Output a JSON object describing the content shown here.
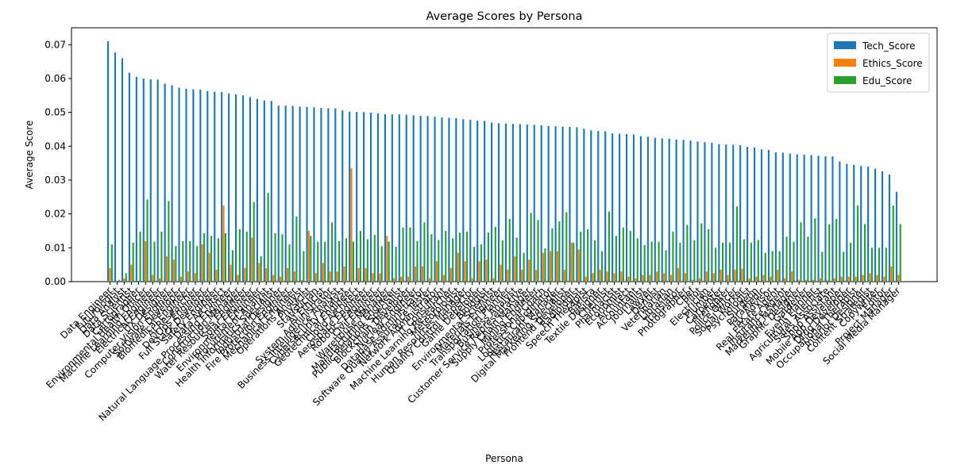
{
  "chart_data": {
    "type": "bar",
    "title": "Average Scores by Persona",
    "xlabel": "Persona",
    "ylabel": "Average Score",
    "categories": [
      "Data Engineer",
      "Futurologist",
      "Data Analyst",
      "Data Scientist",
      "Cartographer",
      "Environmental Health Officer",
      "Machine Learning Engineer",
      "Electrical Engineer",
      "UX Designer",
      "Computer Vision Engineer",
      "Software Developer",
      "Biomedical Engineer",
      "AI Researcher",
      "DevOps Engineer",
      "Full Stack Developer",
      "Safety Engineer",
      "Data Architect",
      "Natural Language Processing Engineer",
      "Construction Manager",
      "Water Resources Engineer",
      "Solar Engineer",
      "Environmental Engineer",
      "Procurement Analyst",
      "Health Informatics Specialist",
      "Industrial Designer",
      "Fire Protection Engineer",
      "Mechanical Engineer",
      "Operations Analyst",
      "Physicist",
      "Statistician",
      "AI Ethicist",
      "System Administrator",
      "Business Intelligence Analyst",
      "Cybersecurity Analyst",
      "Geotechnical Engineer",
      "Cloud Architect",
      "Aerospace Engineer",
      "Robotics Engineer",
      "Civil Engineer",
      "Warehouse Manager",
      "Manufacturing Engineer",
      "Public Relations Specialist",
      "Blockchain Developer",
      "Nuclear Engineer",
      "Database Administrator",
      "Software Quality Assurance Tester",
      "Network Administrator",
      "IT Consultant",
      "Machine Learning Researcher",
      "Meteorologist",
      "Human Resources Manager",
      "Quality Control Inspector",
      "Game Developer",
      "Biologist",
      "Environmental Scientist",
      "Materials Engineer",
      "Transportation Planner",
      "Business Analyst",
      "Customer Service Representative",
      "Supply Chain Manager",
      "Mining Engineer",
      "Professional Coach",
      "Logistics Coordinator",
      "Restaurant Manager",
      "Digital Marketing Specialist",
      "Frontend Developer",
      "Radiologist",
      "Speech Therapist",
      "Barista",
      "Textile Designer",
      "Chemist",
      "Pharmacist",
      "Economist",
      "Architect",
      "Accountant",
      "Journalist",
      "Lawyer",
      "Dentist",
      "Veterinarian",
      "Librarian",
      "Translator",
      "Photographer",
      "Chef",
      "Pilot",
      "Electrician",
      "Plumber",
      "Carpenter",
      "Firefighter",
      "Police Officer",
      "Social Worker",
      "Psychologist",
      "Surgeon",
      "Paramedic",
      "Tax Advisor",
      "Real Estate Agent",
      "Insurance Agent",
      "Marketing Manager",
      "Graphic Designer",
      "Gardener",
      "Event Planner",
      "Agricultural Scientist",
      "Sales Associate",
      "Shop Assistant",
      "Mobile App Developer",
      "Drug Developer",
      "Occupational Therapist",
      "Interior Designer",
      "Content Strategist",
      "Copywriter",
      "Editor",
      "Project Manager",
      "Social Media Manager"
    ],
    "series": [
      {
        "name": "Tech_Score",
        "color": "#1f77b4",
        "values": [
          0.071,
          0.0677,
          0.066,
          0.0617,
          0.0605,
          0.06,
          0.0598,
          0.0597,
          0.0585,
          0.058,
          0.0573,
          0.057,
          0.0568,
          0.0567,
          0.0563,
          0.0561,
          0.056,
          0.0556,
          0.0553,
          0.055,
          0.0545,
          0.054,
          0.0535,
          0.0534,
          0.052,
          0.052,
          0.0519,
          0.0517,
          0.0516,
          0.0515,
          0.0513,
          0.0512,
          0.0512,
          0.0506,
          0.0502,
          0.0501,
          0.0501,
          0.0499,
          0.0497,
          0.0495,
          0.0494,
          0.0494,
          0.0493,
          0.0491,
          0.049,
          0.0489,
          0.0487,
          0.0485,
          0.0484,
          0.0483,
          0.048,
          0.0478,
          0.0476,
          0.0475,
          0.047,
          0.0468,
          0.0467,
          0.0466,
          0.0465,
          0.0464,
          0.0463,
          0.0462,
          0.046,
          0.0459,
          0.0458,
          0.0457,
          0.0456,
          0.0452,
          0.0447,
          0.0445,
          0.0444,
          0.0438,
          0.0437,
          0.0436,
          0.0435,
          0.043,
          0.0428,
          0.0425,
          0.0423,
          0.0422,
          0.042,
          0.0419,
          0.0417,
          0.0414,
          0.0412,
          0.041,
          0.0406,
          0.0405,
          0.0404,
          0.0403,
          0.0398,
          0.0396,
          0.0391,
          0.0389,
          0.0382,
          0.0381,
          0.0378,
          0.0376,
          0.0375,
          0.0374,
          0.0372,
          0.037,
          0.037,
          0.0355,
          0.0348,
          0.0345,
          0.0342,
          0.034,
          0.0334,
          0.0326,
          0.0316,
          0.0265
        ]
      },
      {
        "name": "Ethics_Score",
        "color": "#ff7f0e",
        "values": [
          0.004,
          0,
          0.001,
          0.005,
          0,
          0.012,
          0.002,
          0.001,
          0.0075,
          0.0065,
          0.0015,
          0.003,
          0.0025,
          0.011,
          0.0085,
          0.0035,
          0.0225,
          0.005,
          0.002,
          0.004,
          0.013,
          0.0055,
          0.004,
          0.002,
          0.0015,
          0.004,
          0.003,
          0.0005,
          0.015,
          0.0025,
          0.0055,
          0.003,
          0.003,
          0.0045,
          0.0335,
          0.004,
          0.004,
          0.0025,
          0.0025,
          0.0135,
          0.001,
          0.0015,
          0.0015,
          0.0045,
          0.0045,
          0.001,
          0.006,
          0.002,
          0.004,
          0.0085,
          0.006,
          0.001,
          0.006,
          0.0065,
          0.001,
          0.005,
          0.0035,
          0.0075,
          0.0035,
          0.0065,
          0.0035,
          0.0085,
          0.009,
          0.009,
          0.0035,
          0.0115,
          0.0095,
          0.0015,
          0.0025,
          0.0035,
          0.003,
          0.0025,
          0.003,
          0.0015,
          0.001,
          0.002,
          0.002,
          0.003,
          0.0025,
          0.002,
          0.004,
          0.0025,
          0.0005,
          0.001,
          0.003,
          0.0025,
          0.0035,
          0.002,
          0.0035,
          0.0038,
          0.001,
          0.0015,
          0.002,
          0.0015,
          0.0035,
          0.001,
          0.003,
          0.0005,
          0.0005,
          0.0005,
          0.001,
          0.0005,
          0.001,
          0.0015,
          0.0015,
          0.0015,
          0.002,
          0.0025,
          0.002,
          0.0015,
          0.0045,
          0.002
        ]
      },
      {
        "name": "Edu_Score",
        "color": "#2ca02c",
        "values": [
          0.011,
          0.0005,
          0.0025,
          0.0115,
          0.0148,
          0.0243,
          0.0118,
          0.0148,
          0.0238,
          0.0105,
          0.012,
          0.012,
          0.0105,
          0.0143,
          0.0135,
          0.0128,
          0.0143,
          0.0093,
          0.0155,
          0.0148,
          0.0235,
          0.0075,
          0.0262,
          0.0143,
          0.014,
          0.011,
          0.0193,
          0.009,
          0.0135,
          0.0118,
          0.0118,
          0.0175,
          0.012,
          0.0128,
          0.0118,
          0.015,
          0.0125,
          0.0138,
          0.0105,
          0.0118,
          0.0103,
          0.016,
          0.016,
          0.012,
          0.0175,
          0.014,
          0.0123,
          0.015,
          0.0128,
          0.0145,
          0.0148,
          0.0103,
          0.011,
          0.0145,
          0.0162,
          0.0122,
          0.0185,
          0.013,
          0.0085,
          0.0203,
          0.0182,
          0.0098,
          0.0158,
          0.0178,
          0.0205,
          0.0115,
          0.0148,
          0.0155,
          0.0122,
          0.009,
          0.0207,
          0.0135,
          0.016,
          0.015,
          0.0128,
          0.0108,
          0.0118,
          0.0118,
          0.0093,
          0.0148,
          0.0115,
          0.0168,
          0.0122,
          0.0172,
          0.0155,
          0.01,
          0.0115,
          0.0115,
          0.0222,
          0.0125,
          0.0115,
          0.0123,
          0.0085,
          0.009,
          0.009,
          0.0133,
          0.0118,
          0.0175,
          0.0133,
          0.0187,
          0.0088,
          0.017,
          0.0185,
          0.0088,
          0.0115,
          0.0225,
          0.017,
          0.01,
          0.01,
          0.01,
          0.0225,
          0.017
        ]
      }
    ],
    "ylim": [
      0,
      0.075
    ],
    "yticks": [
      {
        "value": 0,
        "label": "0.00"
      },
      {
        "value": 0.01,
        "label": "0.01"
      },
      {
        "value": 0.02,
        "label": "0.02"
      },
      {
        "value": 0.03,
        "label": "0.03"
      },
      {
        "value": 0.04,
        "label": "0.04"
      },
      {
        "value": 0.05,
        "label": "0.05"
      },
      {
        "value": 0.06,
        "label": "0.06"
      },
      {
        "value": 0.07,
        "label": "0.07"
      }
    ],
    "legend": "upper right"
  }
}
